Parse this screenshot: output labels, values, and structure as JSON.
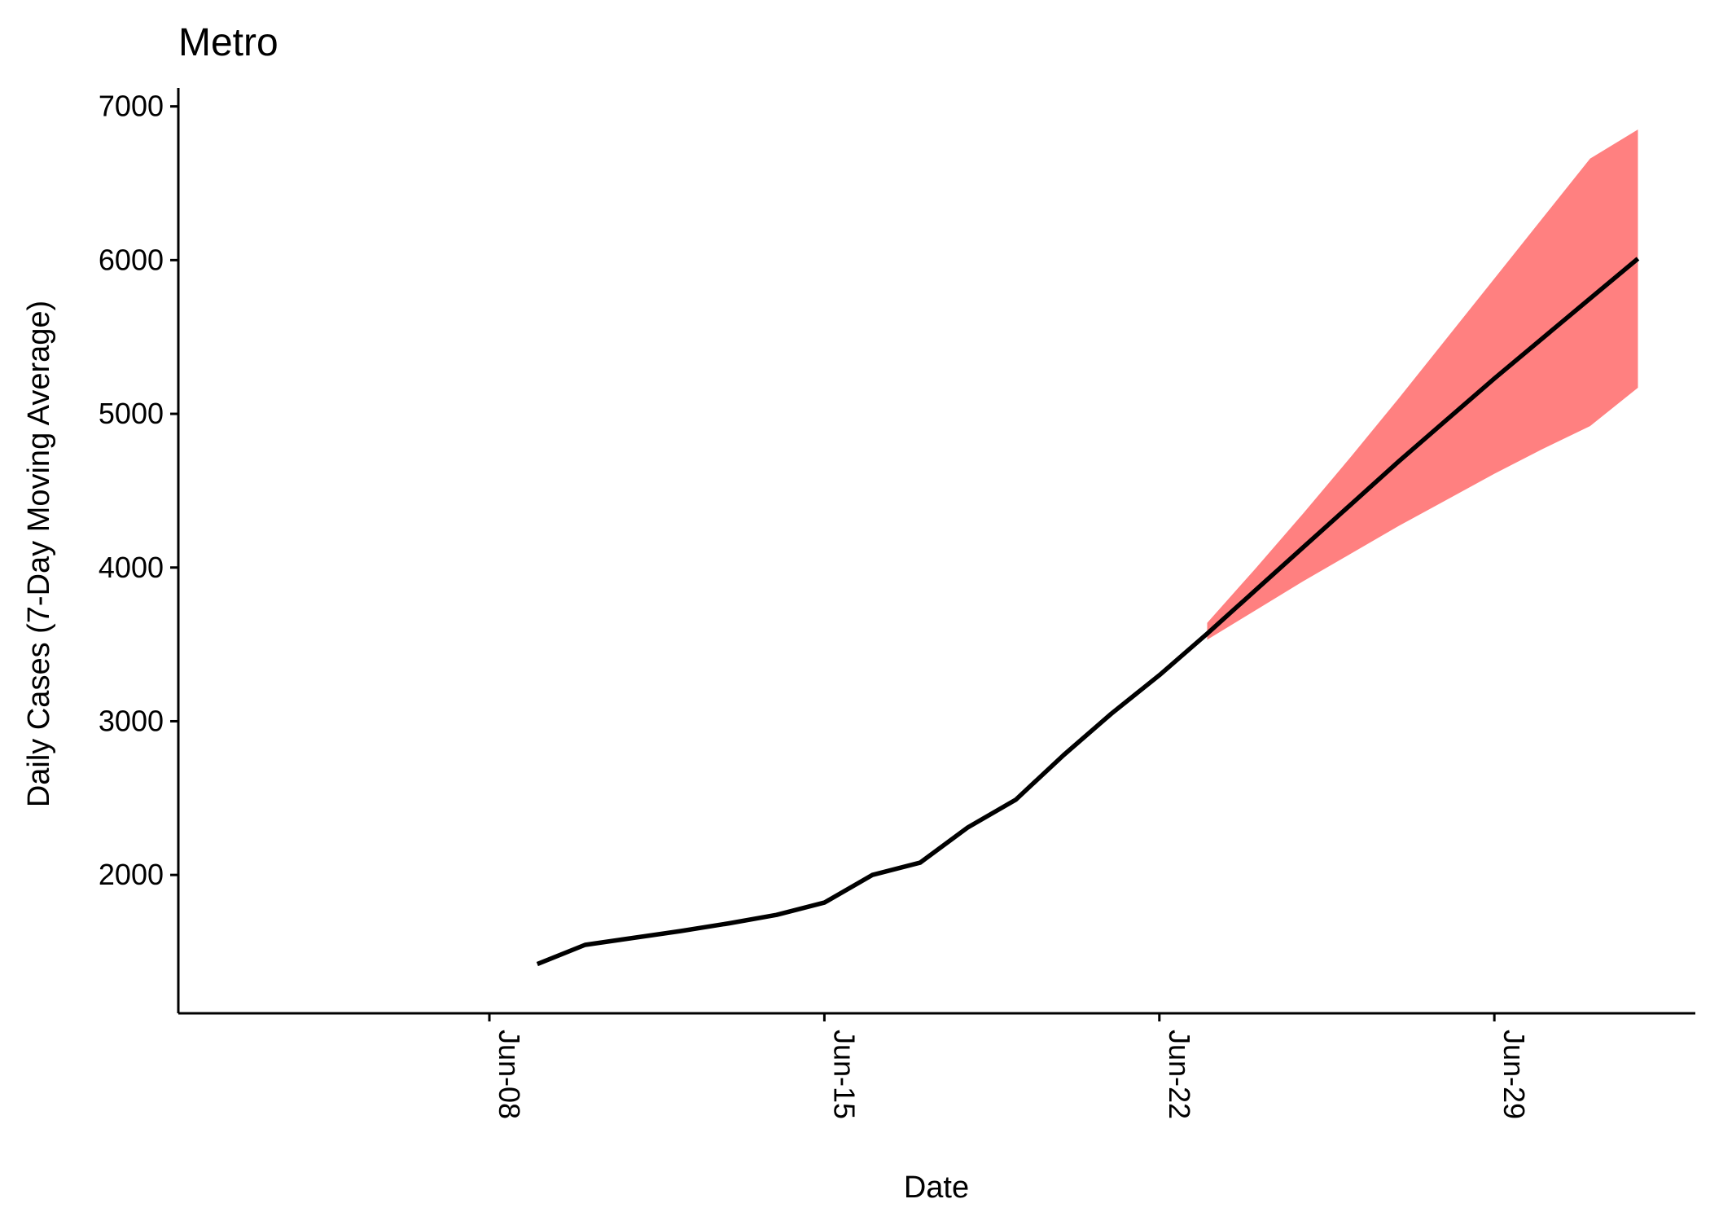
{
  "chart_data": {
    "type": "line",
    "title": "Metro",
    "xlabel": "Date",
    "ylabel": "Daily Cases (7-Day Moving Average)",
    "x_ticks": [
      {
        "date": "2020-06-08",
        "label": "Jun-08"
      },
      {
        "date": "2020-06-15",
        "label": "Jun-15"
      },
      {
        "date": "2020-06-22",
        "label": "Jun-22"
      },
      {
        "date": "2020-06-29",
        "label": "Jun-29"
      }
    ],
    "y_ticks": [
      2000,
      3000,
      4000,
      5000,
      6000,
      7000
    ],
    "xlim": [
      "2020-06-01.5",
      "2020-07-03.2"
    ],
    "ylim": [
      1100,
      7120
    ],
    "grid": false,
    "line_color": "#000000",
    "ribbon_color": "#ff8080",
    "series": [
      {
        "values": [
          {
            "x": "2020-06-09",
            "y": 1420
          },
          {
            "x": "2020-06-10",
            "y": 1545
          },
          {
            "x": "2020-06-11",
            "y": 1590
          },
          {
            "x": "2020-06-12",
            "y": 1635
          },
          {
            "x": "2020-06-13",
            "y": 1685
          },
          {
            "x": "2020-06-14",
            "y": 1740
          },
          {
            "x": "2020-06-15",
            "y": 1820
          },
          {
            "x": "2020-06-16",
            "y": 2000
          },
          {
            "x": "2020-06-17",
            "y": 2080
          },
          {
            "x": "2020-06-18",
            "y": 2310
          },
          {
            "x": "2020-06-19",
            "y": 2490
          },
          {
            "x": "2020-06-20",
            "y": 2780
          },
          {
            "x": "2020-06-21",
            "y": 3050
          },
          {
            "x": "2020-06-22",
            "y": 3300
          },
          {
            "x": "2020-06-23",
            "y": 3570
          },
          {
            "x": "2020-06-24",
            "y": 3850
          },
          {
            "x": "2020-06-25",
            "y": 4130
          },
          {
            "x": "2020-06-26",
            "y": 4410
          },
          {
            "x": "2020-06-27",
            "y": 4690
          },
          {
            "x": "2020-06-28",
            "y": 4960
          },
          {
            "x": "2020-06-29",
            "y": 5230
          },
          {
            "x": "2020-06-30",
            "y": 5490
          },
          {
            "x": "2020-07-01",
            "y": 5750
          },
          {
            "x": "2020-07-02",
            "y": 6010
          }
        ]
      }
    ],
    "ribbon": [
      {
        "x": "2020-06-23",
        "lower": 3530,
        "upper": 3640
      },
      {
        "x": "2020-06-24",
        "lower": 3720,
        "upper": 3990
      },
      {
        "x": "2020-06-25",
        "lower": 3910,
        "upper": 4350
      },
      {
        "x": "2020-06-26",
        "lower": 4090,
        "upper": 4720
      },
      {
        "x": "2020-06-27",
        "lower": 4270,
        "upper": 5100
      },
      {
        "x": "2020-06-28",
        "lower": 4440,
        "upper": 5490
      },
      {
        "x": "2020-06-29",
        "lower": 4610,
        "upper": 5880
      },
      {
        "x": "2020-06-30",
        "lower": 4770,
        "upper": 6270
      },
      {
        "x": "2020-07-01",
        "lower": 4920,
        "upper": 6660
      },
      {
        "x": "2020-07-02",
        "lower": 5170,
        "upper": 6850
      }
    ]
  }
}
